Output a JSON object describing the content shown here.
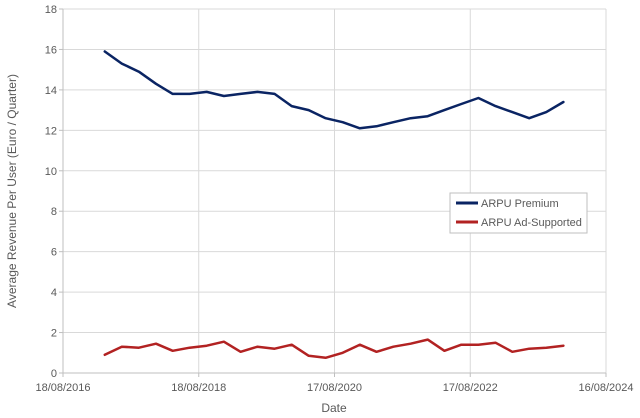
{
  "chart_data": {
    "type": "line",
    "title": "",
    "xlabel": "Date",
    "ylabel": "Average Revenue Per User (Euro / Quarter)",
    "ylim": [
      0,
      18
    ],
    "yticks": [
      0,
      2,
      4,
      6,
      8,
      10,
      12,
      14,
      16,
      18
    ],
    "xrange": [
      "2016-08-18",
      "2024-08-16"
    ],
    "xticks": [
      "2016-08-18",
      "2018-08-18",
      "2020-08-17",
      "2022-08-17",
      "2024-08-16"
    ],
    "xtick_labels": [
      "18/08/2016",
      "18/08/2018",
      "17/08/2020",
      "17/08/2022",
      "16/08/2024"
    ],
    "grid": "vertical and horizontal",
    "legend": "center-right",
    "series": [
      {
        "name": "ARPU Premium",
        "color": "#0a2463",
        "points": [
          [
            "2017-03-31",
            15.9
          ],
          [
            "2017-06-30",
            15.3
          ],
          [
            "2017-09-30",
            14.9
          ],
          [
            "2017-12-31",
            14.3
          ],
          [
            "2018-03-31",
            13.8
          ],
          [
            "2018-06-30",
            13.8
          ],
          [
            "2018-09-30",
            13.9
          ],
          [
            "2018-12-31",
            13.7
          ],
          [
            "2019-03-31",
            13.8
          ],
          [
            "2019-06-30",
            13.9
          ],
          [
            "2019-09-30",
            13.8
          ],
          [
            "2019-12-31",
            13.2
          ],
          [
            "2020-03-31",
            13.0
          ],
          [
            "2020-06-30",
            12.6
          ],
          [
            "2020-09-30",
            12.4
          ],
          [
            "2020-12-31",
            12.1
          ],
          [
            "2021-03-31",
            12.2
          ],
          [
            "2021-06-30",
            12.4
          ],
          [
            "2021-09-30",
            12.6
          ],
          [
            "2021-12-31",
            12.7
          ],
          [
            "2022-03-31",
            13.0
          ],
          [
            "2022-06-30",
            13.3
          ],
          [
            "2022-09-30",
            13.6
          ],
          [
            "2022-12-31",
            13.2
          ],
          [
            "2023-03-31",
            12.9
          ],
          [
            "2023-06-30",
            12.6
          ],
          [
            "2023-09-30",
            12.9
          ],
          [
            "2023-12-31",
            13.4
          ]
        ]
      },
      {
        "name": "ARPU Ad-Supported",
        "color": "#b22222",
        "points": [
          [
            "2017-03-31",
            0.9
          ],
          [
            "2017-06-30",
            1.3
          ],
          [
            "2017-09-30",
            1.25
          ],
          [
            "2017-12-31",
            1.45
          ],
          [
            "2018-03-31",
            1.1
          ],
          [
            "2018-06-30",
            1.25
          ],
          [
            "2018-09-30",
            1.35
          ],
          [
            "2018-12-31",
            1.55
          ],
          [
            "2019-03-31",
            1.05
          ],
          [
            "2019-06-30",
            1.3
          ],
          [
            "2019-09-30",
            1.2
          ],
          [
            "2019-12-31",
            1.4
          ],
          [
            "2020-03-31",
            0.85
          ],
          [
            "2020-06-30",
            0.75
          ],
          [
            "2020-09-30",
            1.0
          ],
          [
            "2020-12-31",
            1.4
          ],
          [
            "2021-03-31",
            1.05
          ],
          [
            "2021-06-30",
            1.3
          ],
          [
            "2021-09-30",
            1.45
          ],
          [
            "2021-12-31",
            1.65
          ],
          [
            "2022-03-31",
            1.1
          ],
          [
            "2022-06-30",
            1.4
          ],
          [
            "2022-09-30",
            1.4
          ],
          [
            "2022-12-31",
            1.5
          ],
          [
            "2023-03-31",
            1.05
          ],
          [
            "2023-06-30",
            1.2
          ],
          [
            "2023-09-30",
            1.25
          ],
          [
            "2023-12-31",
            1.35
          ]
        ]
      }
    ]
  }
}
